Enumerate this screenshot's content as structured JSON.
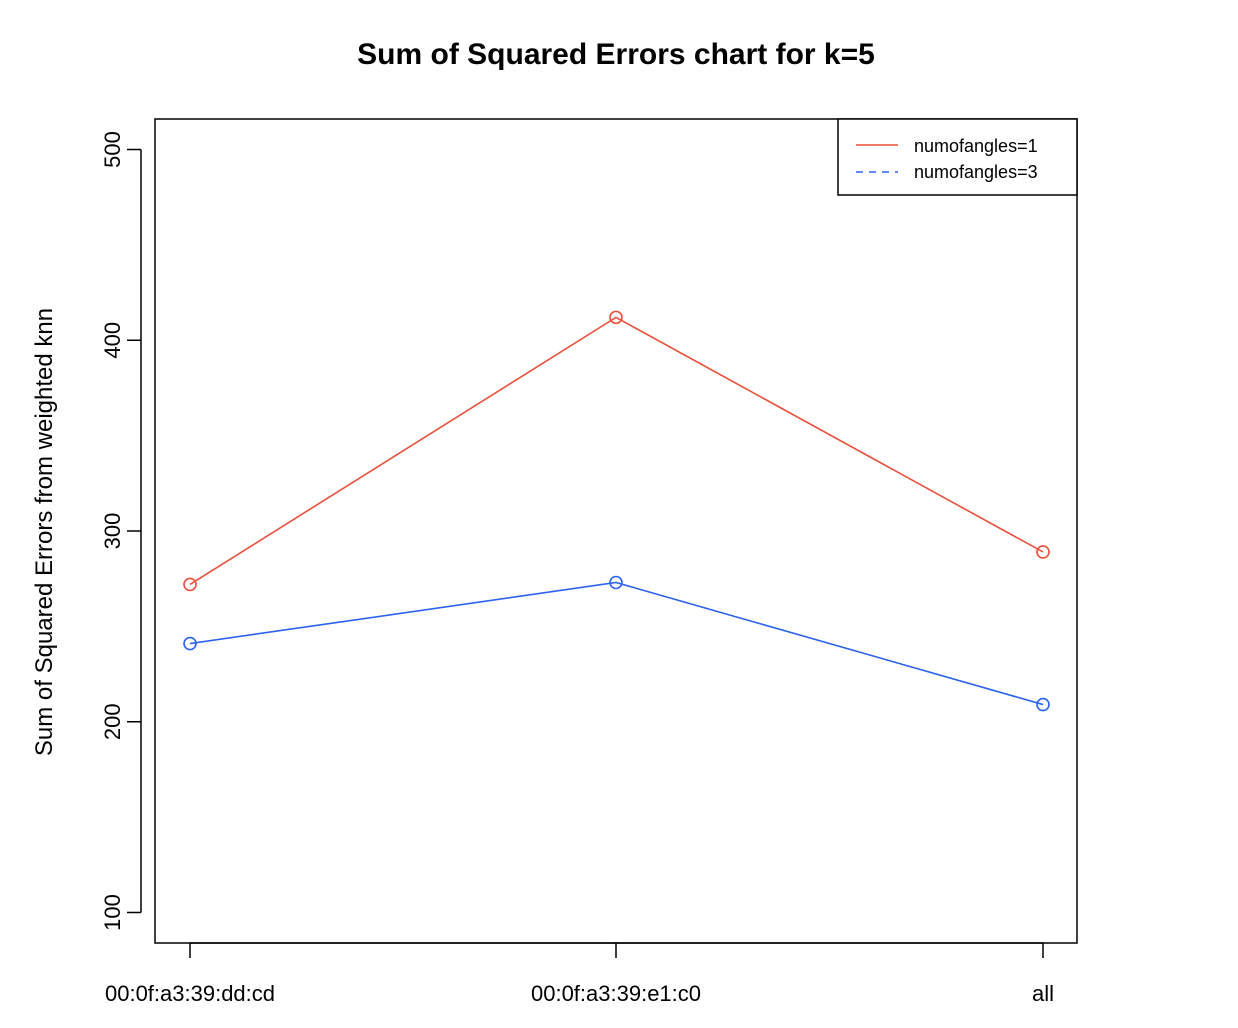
{
  "chart_data": {
    "type": "line",
    "title": "Sum of Squared Errors chart for k=5",
    "xlabel": "",
    "ylabel": "Sum of Squared Errors from weighted knn",
    "categories": [
      "00:0f:a3:39:dd:cd",
      "00:0f:a3:39:e1:c0",
      "all"
    ],
    "yticks": [
      "100",
      "200",
      "300",
      "400",
      "500"
    ],
    "ylim": [
      84,
      516
    ],
    "grid": false,
    "legend_position": "top-right",
    "series": [
      {
        "name": "numofangles=1",
        "color": "#e8503a",
        "line_style": "solid",
        "values": [
          272,
          412,
          289
        ]
      },
      {
        "name": "numofangles=3",
        "color": "#2b63f0",
        "line_style": "dashed",
        "values": [
          241,
          273,
          209
        ]
      }
    ]
  }
}
